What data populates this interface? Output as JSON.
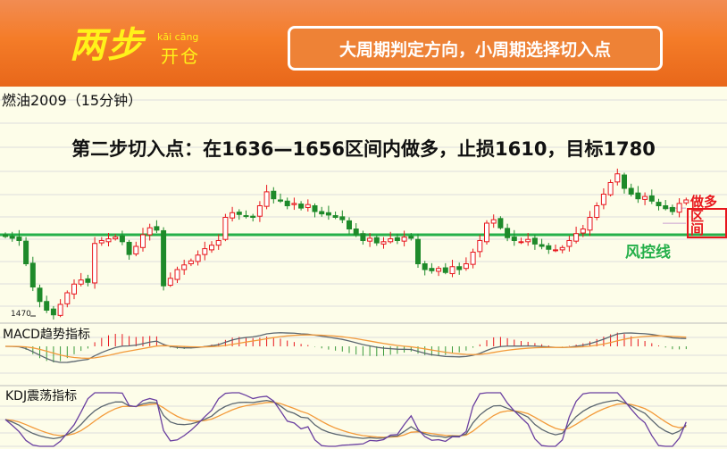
{
  "header": {
    "logo_main": "两步",
    "logo_pinyin": "kāi cāng",
    "logo_sub": "开仓",
    "slogan": "大周期判定方向，小周期选择切入点"
  },
  "title": "燃油2009（15分钟）",
  "headline": "第二步切入点：在1636—1656区间内做多，止损1610，目标1780",
  "annotations": {
    "long": "做多",
    "zone": "区间",
    "risk_line": "风控线",
    "low_label": "1470"
  },
  "indicators": {
    "macd": "MACD趋势指标",
    "kdj": "KDJ震荡指标"
  },
  "colors": {
    "up": "#e8161c",
    "down": "#1e8a2a",
    "risk_line": "#25b04a",
    "header": "#f47c28",
    "macd_dif": "#5b6670",
    "macd_dea": "#f39a3a",
    "kdj_j": "#6a3fa0"
  },
  "chart_data": {
    "type": "candlestick",
    "risk_line": 1610,
    "low": 1470,
    "zone": [
      1636,
      1656
    ],
    "closes": [
      1607,
      1604,
      1600,
      1560,
      1520,
      1495,
      1480,
      1472,
      1490,
      1510,
      1525,
      1532,
      1528,
      1595,
      1600,
      1603,
      1606,
      1598,
      1576,
      1590,
      1610,
      1622,
      1618,
      1522,
      1535,
      1550,
      1558,
      1565,
      1575,
      1586,
      1592,
      1600,
      1640,
      1648,
      1645,
      1642,
      1640,
      1660,
      1684,
      1672,
      1668,
      1660,
      1664,
      1656,
      1662,
      1650,
      1646,
      1644,
      1640,
      1636,
      1620,
      1610,
      1600,
      1604,
      1596,
      1598,
      1603,
      1600,
      1606,
      1604,
      1560,
      1550,
      1548,
      1552,
      1545,
      1555,
      1550,
      1560,
      1580,
      1600,
      1630,
      1636,
      1622,
      1605,
      1600,
      1598,
      1602,
      1594,
      1590,
      1585,
      1584,
      1588,
      1600,
      1612,
      1620,
      1640,
      1660,
      1680,
      1700,
      1715,
      1690,
      1680,
      1672,
      1676,
      1668,
      1660,
      1655,
      1650,
      1664,
      1670
    ]
  }
}
